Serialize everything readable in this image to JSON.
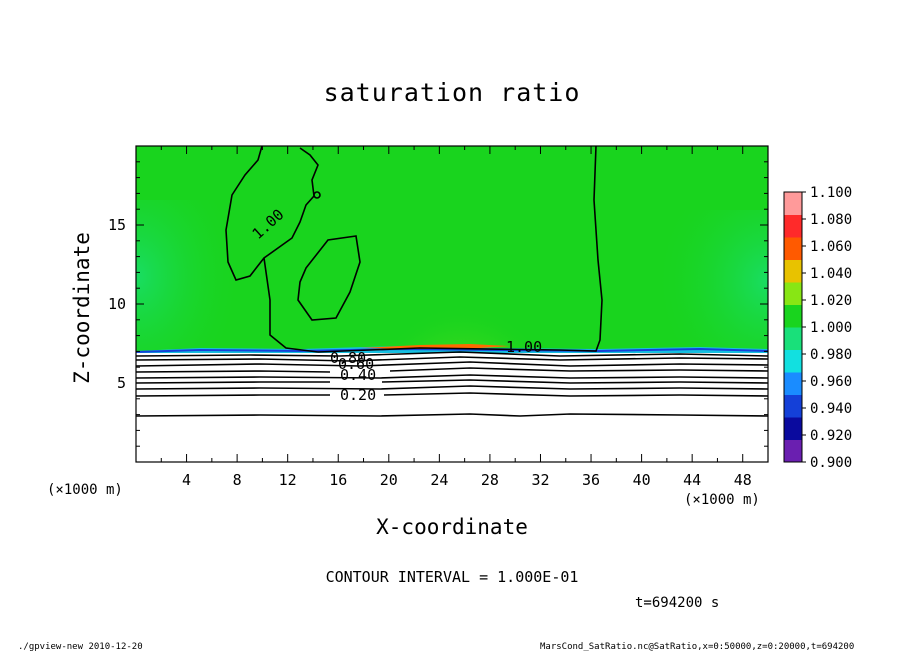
{
  "chart_data": {
    "type": "heatmap",
    "title": "saturation ratio",
    "xlabel": "X-coordinate",
    "ylabel": "Z-coordinate",
    "x_unit": "(×1000 m)",
    "y_unit": "(×1000 m)",
    "xlim": [
      0,
      50
    ],
    "ylim": [
      0,
      20
    ],
    "x_ticks": [
      "4",
      "8",
      "12",
      "16",
      "20",
      "24",
      "28",
      "32",
      "36",
      "40",
      "44",
      "48"
    ],
    "y_ticks": [
      "5",
      "10",
      "15"
    ],
    "colorbar": {
      "levels": [
        "0.900",
        "0.920",
        "0.940",
        "0.960",
        "0.980",
        "1.000",
        "1.020",
        "1.040",
        "1.060",
        "1.080",
        "1.100"
      ],
      "colors": [
        "#6a1fb0",
        "#0a0a9e",
        "#1440d8",
        "#1a8cff",
        "#12e0e0",
        "#19e07a",
        "#19d41e",
        "#88e614",
        "#e8c200",
        "#ff5a00",
        "#ff2a2a",
        "#ff9a9a"
      ]
    },
    "contour_labels": [
      "1.00",
      "1.00",
      "0.80",
      "0.60",
      "0.40",
      "0.20"
    ],
    "contour_interval": "CONTOUR INTERVAL = 1.000E-01",
    "time": "t=694200 s"
  },
  "footer": {
    "left": "./gpview-new  2010-12-20",
    "right": "MarsCond_SatRatio.nc@SatRatio,x=0:50000,z=0:20000,t=694200"
  },
  "colors": {
    "background": "#ffffff",
    "saturated_green": "#19d41e",
    "subsaturated": "#ffffff"
  }
}
